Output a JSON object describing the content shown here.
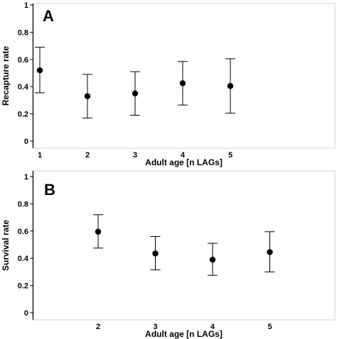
{
  "chart_data": [
    {
      "type": "scatter",
      "panel_label": "A",
      "x": [
        1,
        2,
        3,
        4,
        5
      ],
      "y": [
        0.52,
        0.33,
        0.35,
        0.425,
        0.405
      ],
      "y_lower": [
        0.355,
        0.17,
        0.19,
        0.265,
        0.205
      ],
      "y_upper": [
        0.69,
        0.49,
        0.51,
        0.585,
        0.605
      ],
      "xlabel": "Adult age [n LAGs]",
      "ylabel": "Recapture rate",
      "xlim": [
        0,
        6
      ],
      "ylim": [
        0,
        1
      ],
      "xticks": [
        "1",
        "2",
        "3",
        "4",
        "5"
      ],
      "yticks": [
        "0",
        "0.2",
        "0.4",
        "0.6",
        "0.8",
        "1"
      ],
      "grid": false
    },
    {
      "type": "scatter",
      "panel_label": "B",
      "x": [
        2,
        3,
        4,
        5
      ],
      "y": [
        0.595,
        0.435,
        0.39,
        0.445
      ],
      "y_lower": [
        0.475,
        0.315,
        0.275,
        0.3
      ],
      "y_upper": [
        0.72,
        0.56,
        0.51,
        0.595
      ],
      "xlabel": "Adult age [n LAGs]",
      "ylabel": "Survival rate",
      "xlim": [
        1,
        6
      ],
      "ylim": [
        0,
        1
      ],
      "xticks": [
        "2",
        "3",
        "4",
        "5"
      ],
      "yticks": [
        "0",
        "0.2",
        "0.4",
        "0.6",
        "0.8",
        "1"
      ],
      "grid": false
    }
  ],
  "style": {
    "marker_color": "#000000",
    "axis_color": "#000000",
    "frame_color": "#d0d0d0"
  }
}
